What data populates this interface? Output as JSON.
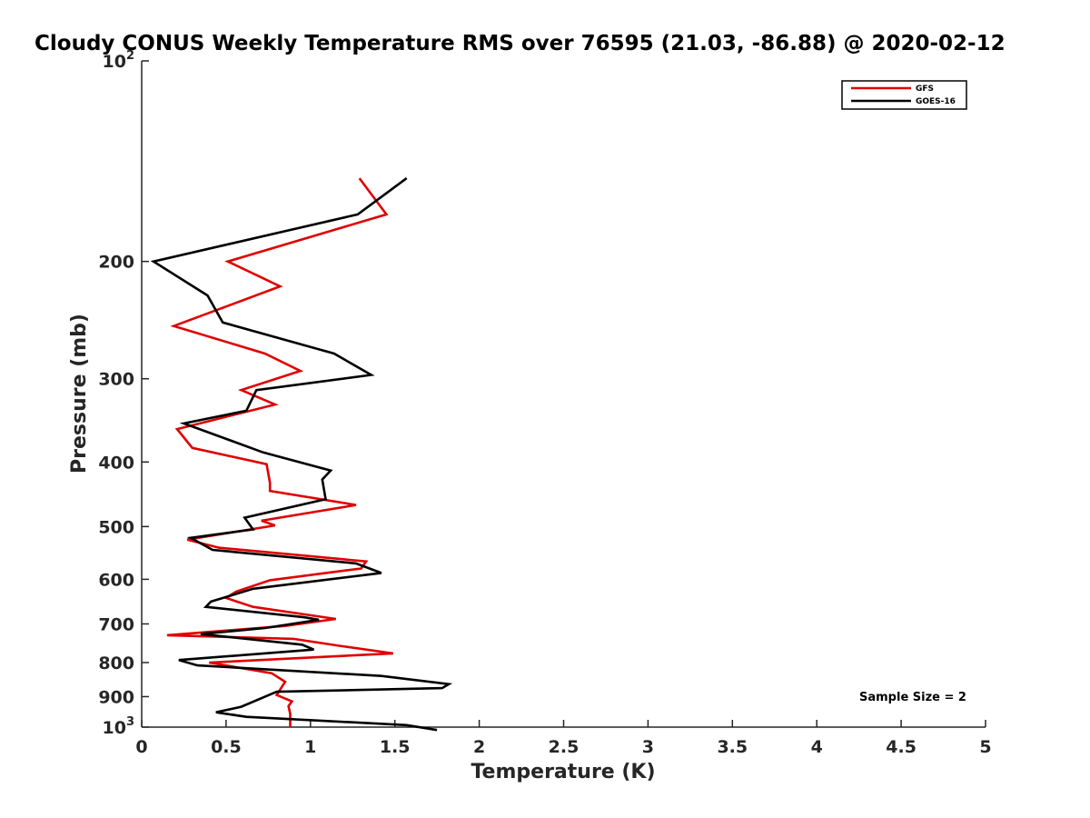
{
  "chart_data": {
    "type": "line",
    "title": "Cloudy CONUS Weekly Temperature RMS over 76595 (21.03, -86.88) @ 2020-02-12",
    "xlabel": "Temperature (K)",
    "ylabel": "Pressure (mb)",
    "xlim": [
      0,
      5
    ],
    "ylim": [
      100,
      1000
    ],
    "yscale": "log",
    "y_reversed": true,
    "grid": false,
    "legend_position": "top-right",
    "x_ticks": [
      {
        "value": 0,
        "label": "0"
      },
      {
        "value": 0.5,
        "label": "0.5"
      },
      {
        "value": 1,
        "label": "1"
      },
      {
        "value": 1.5,
        "label": "1.5"
      },
      {
        "value": 2,
        "label": "2"
      },
      {
        "value": 2.5,
        "label": "2.5"
      },
      {
        "value": 3,
        "label": "3"
      },
      {
        "value": 3.5,
        "label": "3.5"
      },
      {
        "value": 4,
        "label": "4"
      },
      {
        "value": 4.5,
        "label": "4.5"
      },
      {
        "value": 5,
        "label": "5"
      }
    ],
    "y_ticks": [
      {
        "value": 100,
        "label": "10",
        "sup": "2"
      },
      {
        "value": 200,
        "label": "200",
        "sup": ""
      },
      {
        "value": 300,
        "label": "300",
        "sup": ""
      },
      {
        "value": 400,
        "label": "400",
        "sup": ""
      },
      {
        "value": 500,
        "label": "500",
        "sup": ""
      },
      {
        "value": 600,
        "label": "600",
        "sup": ""
      },
      {
        "value": 700,
        "label": "700",
        "sup": ""
      },
      {
        "value": 800,
        "label": "800",
        "sup": ""
      },
      {
        "value": 900,
        "label": "900",
        "sup": ""
      },
      {
        "value": 1000,
        "label": "10",
        "sup": "3"
      }
    ],
    "series": [
      {
        "name": "GFS",
        "color": "#e00000",
        "points": [
          [
            1.29,
            150
          ],
          [
            1.45,
            170
          ],
          [
            0.51,
            200
          ],
          [
            0.82,
            218
          ],
          [
            0.19,
            250
          ],
          [
            0.73,
            275
          ],
          [
            0.94,
            292
          ],
          [
            0.59,
            312
          ],
          [
            0.79,
            328
          ],
          [
            0.21,
            357
          ],
          [
            0.3,
            381
          ],
          [
            0.74,
            403
          ],
          [
            0.76,
            430
          ],
          [
            0.76,
            442
          ],
          [
            1.27,
            464
          ],
          [
            0.71,
            490
          ],
          [
            0.79,
            498
          ],
          [
            0.27,
            523
          ],
          [
            0.46,
            538
          ],
          [
            1.33,
            564
          ],
          [
            1.3,
            578
          ],
          [
            0.76,
            602
          ],
          [
            0.56,
            626
          ],
          [
            0.5,
            640
          ],
          [
            0.66,
            660
          ],
          [
            1.15,
            688
          ],
          [
            0.85,
            705
          ],
          [
            0.15,
            728
          ],
          [
            0.9,
            737
          ],
          [
            1.17,
            755
          ],
          [
            1.49,
            775
          ],
          [
            0.4,
            800
          ],
          [
            0.77,
            830
          ],
          [
            0.85,
            855
          ],
          [
            0.8,
            895
          ],
          [
            0.89,
            915
          ],
          [
            0.87,
            930
          ],
          [
            0.88,
            955
          ],
          [
            0.88,
            1000
          ]
        ]
      },
      {
        "name": "GOES-16",
        "color": "#000000",
        "points": [
          [
            1.57,
            150
          ],
          [
            1.28,
            170
          ],
          [
            0.07,
            200
          ],
          [
            0.39,
            225
          ],
          [
            0.48,
            247
          ],
          [
            1.14,
            275
          ],
          [
            1.36,
            296
          ],
          [
            0.68,
            312
          ],
          [
            0.62,
            335
          ],
          [
            0.25,
            350
          ],
          [
            0.72,
            387
          ],
          [
            1.12,
            412
          ],
          [
            1.07,
            425
          ],
          [
            1.09,
            455
          ],
          [
            0.61,
            485
          ],
          [
            0.66,
            505
          ],
          [
            0.29,
            520
          ],
          [
            0.42,
            542
          ],
          [
            1.27,
            568
          ],
          [
            1.42,
            587
          ],
          [
            0.66,
            620
          ],
          [
            0.41,
            648
          ],
          [
            0.38,
            660
          ],
          [
            0.96,
            684
          ],
          [
            1.05,
            690
          ],
          [
            0.73,
            710
          ],
          [
            0.35,
            725
          ],
          [
            0.95,
            752
          ],
          [
            1.02,
            765
          ],
          [
            0.22,
            793
          ],
          [
            0.33,
            808
          ],
          [
            1.42,
            838
          ],
          [
            1.82,
            862
          ],
          [
            1.78,
            874
          ],
          [
            0.8,
            885
          ],
          [
            0.59,
            932
          ],
          [
            0.44,
            950
          ],
          [
            0.62,
            965
          ],
          [
            1.57,
            993
          ],
          [
            1.75,
            1010
          ]
        ]
      }
    ],
    "annotation": "Sample Size = 2"
  }
}
